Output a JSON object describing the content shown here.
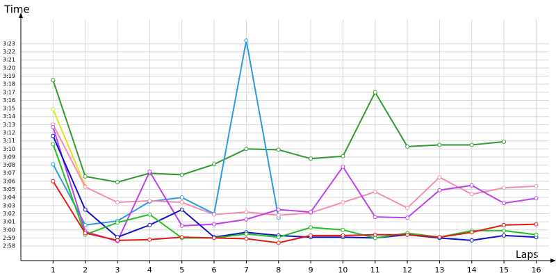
{
  "chart_data": {
    "type": "line",
    "y_label": "Time",
    "x_label": "Laps",
    "x": [
      1,
      2,
      3,
      4,
      5,
      6,
      7,
      8,
      9,
      10,
      11,
      12,
      13,
      14,
      15,
      16
    ],
    "xlim": [
      0,
      16.4
    ],
    "xticks": [
      1,
      2,
      3,
      4,
      5,
      6,
      7,
      8,
      9,
      10,
      11,
      12,
      13,
      14,
      15,
      16
    ],
    "ylim": [
      176.2,
      206
    ],
    "yticks": [
      {
        "value": 178,
        "label": "2:58"
      },
      {
        "value": 179,
        "label": "2:59"
      },
      {
        "value": 180,
        "label": "3:00"
      },
      {
        "value": 181,
        "label": "3:01"
      },
      {
        "value": 182,
        "label": "3:02"
      },
      {
        "value": 183,
        "label": "3:03"
      },
      {
        "value": 184,
        "label": "3:04"
      },
      {
        "value": 185,
        "label": "3:05"
      },
      {
        "value": 186,
        "label": "3:06"
      },
      {
        "value": 187,
        "label": "3:07"
      },
      {
        "value": 188,
        "label": "3:08"
      },
      {
        "value": 189,
        "label": "3:09"
      },
      {
        "value": 190,
        "label": "3:10"
      },
      {
        "value": 191,
        "label": "3:11"
      },
      {
        "value": 192,
        "label": "3:12"
      },
      {
        "value": 193,
        "label": "3:13"
      },
      {
        "value": 194,
        "label": "3:14"
      },
      {
        "value": 195,
        "label": "3:15"
      },
      {
        "value": 196,
        "label": "3:16"
      },
      {
        "value": 197,
        "label": "3:17"
      },
      {
        "value": 198,
        "label": "3:18"
      },
      {
        "value": 199,
        "label": "3:19"
      },
      {
        "value": 200,
        "label": "3:20"
      },
      {
        "value": 201,
        "label": "3:21"
      },
      {
        "value": 202,
        "label": "3:22"
      },
      {
        "value": 203,
        "label": "3:23"
      }
    ],
    "grid": true,
    "series": [
      {
        "color": "#2e9a2e",
        "values": [
          198.5,
          186.6,
          185.9,
          187.0,
          186.8,
          188.1,
          190.0,
          189.9,
          188.8,
          189.1,
          197.0,
          190.3,
          190.5,
          190.5,
          190.9,
          null
        ]
      },
      {
        "color": "#2a9be0",
        "values": [
          188.1,
          180.6,
          181.1,
          183.5,
          184.0,
          182.0,
          203.4,
          181.5,
          null,
          null,
          null,
          null,
          null,
          null,
          null,
          null
        ]
      },
      {
        "color": "#e0e020",
        "values": [
          194.9,
          185.4,
          null,
          null,
          null,
          null,
          null,
          null,
          null,
          null,
          null,
          null,
          null,
          null,
          null,
          null
        ]
      },
      {
        "color": "#f28cb0",
        "values": [
          193.0,
          185.3,
          183.4,
          183.6,
          183.4,
          181.9,
          182.2,
          181.8,
          182.1,
          183.4,
          184.7,
          182.7,
          186.5,
          184.4,
          185.2,
          185.4
        ]
      },
      {
        "color": "#c040e8",
        "values": [
          192.7,
          179.8,
          178.6,
          187.2,
          180.5,
          180.7,
          181.3,
          182.5,
          182.2,
          187.8,
          181.6,
          181.5,
          184.9,
          185.5,
          183.3,
          183.9
        ]
      },
      {
        "color": "#1010c8",
        "values": [
          191.6,
          182.5,
          179.1,
          180.6,
          182.5,
          179.1,
          179.7,
          179.3,
          179.1,
          179.1,
          179.0,
          179.4,
          179.0,
          178.7,
          179.3,
          179.1
        ]
      },
      {
        "color": "#22c022",
        "values": [
          190.6,
          179.4,
          180.9,
          181.9,
          179.0,
          179.0,
          179.5,
          179.1,
          180.3,
          180.0,
          179.0,
          179.6,
          179.1,
          179.9,
          179.9,
          179.4
        ]
      },
      {
        "color": "#e01818",
        "values": [
          186.0,
          179.6,
          178.7,
          178.8,
          179.1,
          179.0,
          178.9,
          178.4,
          179.3,
          179.3,
          179.4,
          179.4,
          179.1,
          179.7,
          180.6,
          180.7
        ]
      }
    ]
  }
}
